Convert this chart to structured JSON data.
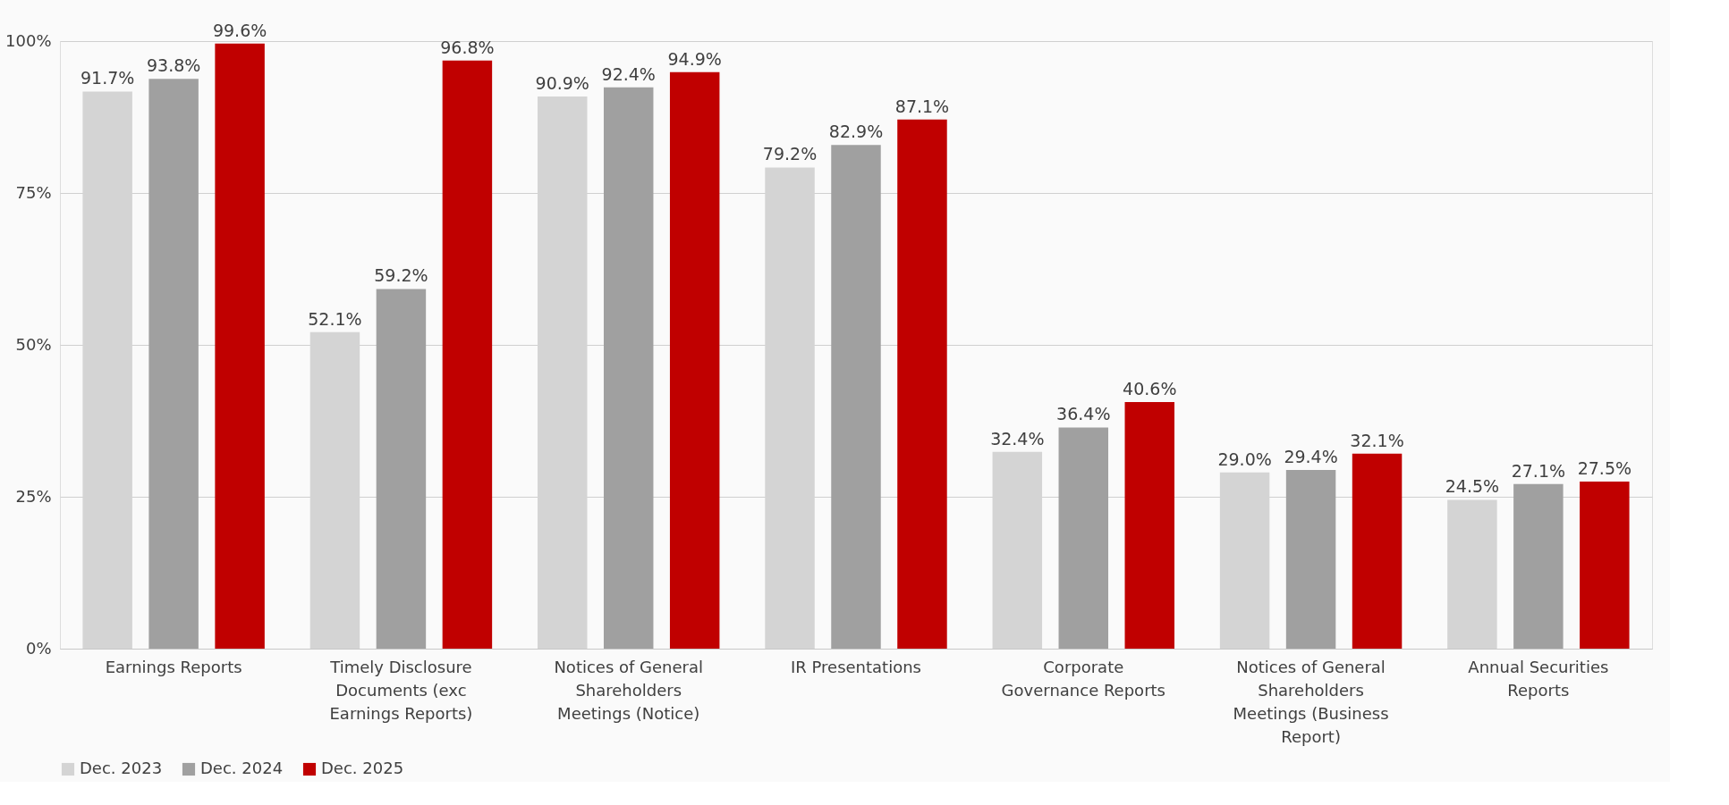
{
  "chart_data": {
    "type": "bar",
    "categories": [
      "Earnings Reports",
      "Timely Disclosure Documents (exc Earnings Reports)",
      "Notices of General Shareholders Meetings (Notice)",
      "IR Presentations",
      "Corporate Governance Reports",
      "Notices of General Shareholders Meetings (Business Report)",
      "Annual Securities Reports"
    ],
    "series": [
      {
        "name": "Dec. 2023",
        "color": "#d4d4d4",
        "values": [
          91.7,
          52.1,
          90.9,
          79.2,
          32.4,
          29.0,
          24.5
        ],
        "value_labels": [
          "91.7%",
          "52.1%",
          "90.9%",
          "79.2%",
          "32.4%",
          "29.0%",
          "24.5%"
        ]
      },
      {
        "name": "Dec. 2024",
        "color": "#a0a0a0",
        "values": [
          93.8,
          59.2,
          92.4,
          82.9,
          36.4,
          29.4,
          27.1
        ],
        "value_labels": [
          "93.8%",
          "59.2%",
          "92.4%",
          "82.9%",
          "36.4%",
          "29.4%",
          "27.1%"
        ]
      },
      {
        "name": "Dec. 2025",
        "color": "#c00000",
        "values": [
          99.6,
          96.8,
          94.9,
          87.1,
          40.6,
          32.1,
          27.5
        ],
        "value_labels": [
          "99.6%",
          "96.8%",
          "94.9%",
          "87.1%",
          "40.6%",
          "32.1%",
          "27.5%"
        ]
      }
    ],
    "ylim": [
      0,
      100
    ],
    "yticks": [
      {
        "value": 0,
        "label": "0%"
      },
      {
        "value": 25,
        "label": "25%"
      },
      {
        "value": 50,
        "label": "50%"
      },
      {
        "value": 75,
        "label": "75%"
      },
      {
        "value": 100,
        "label": "100%"
      }
    ],
    "grid": "y",
    "legend": "bottom"
  }
}
